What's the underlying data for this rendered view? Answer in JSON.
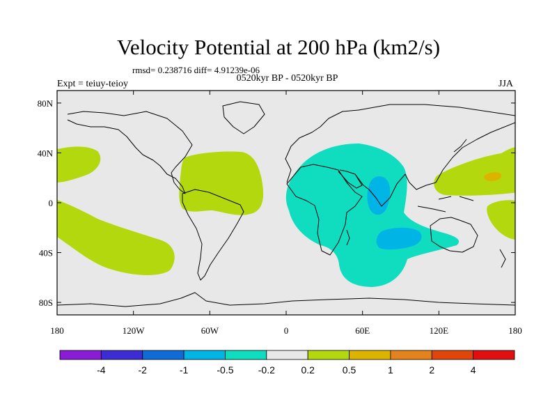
{
  "title": "Velocity Potential at 200 hPa (km2/s)",
  "stats": "rmsd= 0.238716 diff= 4.91239e-06",
  "period": "0520kyr BP - 0520kyr BP",
  "experiment": "Expt = teiuy-teioy",
  "season": "JJA",
  "map": {
    "projection": "cylindrical-equidistant",
    "lon_range": [
      -180,
      180
    ],
    "lat_range": [
      -90,
      90
    ],
    "lon_ticks": [
      {
        "value": -180,
        "label": "180"
      },
      {
        "value": -120,
        "label": "120W"
      },
      {
        "value": -60,
        "label": "60W"
      },
      {
        "value": 0,
        "label": "0"
      },
      {
        "value": 60,
        "label": "60E"
      },
      {
        "value": 120,
        "label": "120E"
      },
      {
        "value": 180,
        "label": "180"
      }
    ],
    "lat_ticks": [
      {
        "value": 80,
        "label": "80N"
      },
      {
        "value": 40,
        "label": "40N"
      },
      {
        "value": 0,
        "label": "0"
      },
      {
        "value": -40,
        "label": "40S"
      },
      {
        "value": -80,
        "label": "80S"
      }
    ],
    "background_color": "#e8e8e8"
  },
  "colorbar": {
    "colors": [
      "#8a1cd8",
      "#3b2dd3",
      "#0f6bd8",
      "#00b4e6",
      "#10dcc0",
      "#e8e8e8",
      "#b3d80d",
      "#dcb400",
      "#e4821c",
      "#e0460a",
      "#e01010"
    ],
    "labels": [
      "-4",
      "-2",
      "-1",
      "-0.5",
      "-0.2",
      "0.2",
      "0.5",
      "1",
      "2",
      "4"
    ]
  }
}
